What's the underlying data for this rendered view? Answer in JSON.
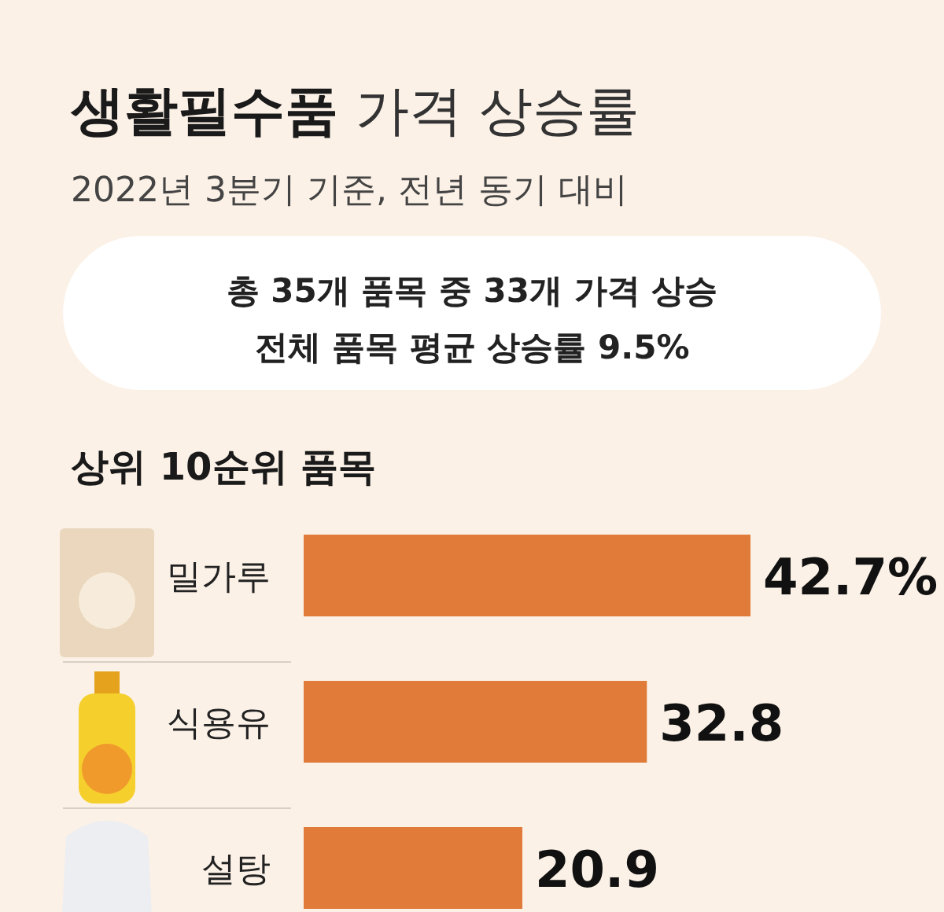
{
  "chart_data": {
    "type": "bar",
    "orientation": "horizontal",
    "title": "생활필수품 가격 상승률",
    "subtitle": "2022년 3분기 기준, 전년 동기 대비",
    "annotations": [
      "총 35개 품목 중 33개 가격 상승",
      "전체 품목 평균 상승률 9.5%",
      "상위 10순위 품목"
    ],
    "categories": [
      "밀가루",
      "식용유",
      "설탕"
    ],
    "values": [
      42.7,
      32.8,
      20.9
    ],
    "value_labels": [
      "42.7%",
      "32.8",
      "20.9"
    ],
    "color": "#e07b39"
  }
}
